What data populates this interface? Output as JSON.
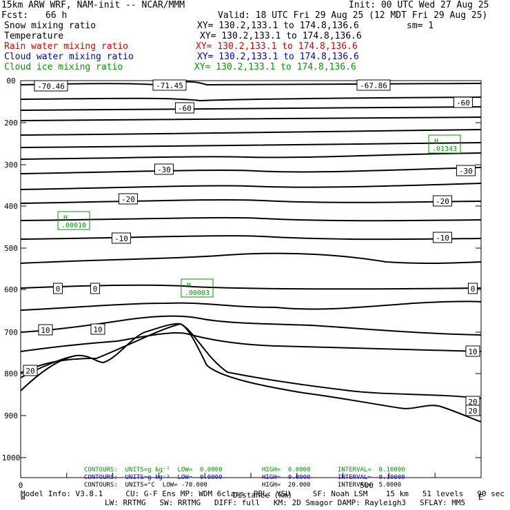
{
  "header": {
    "model": "15km ARW WRF, NAM-init -- NCAR/MMM",
    "init": "Init: 00 UTC Wed 27 Aug 25",
    "fcst_label": "Fcst:",
    "fcst_value": "66 h",
    "valid": "Valid: 18 UTC Fri 29 Aug 25 (12 MDT Fri 29 Aug 25)",
    "fields": [
      {
        "name": "Snow mixing ratio",
        "xy": "XY= 130.2,133.1 to 174.8,136.6",
        "extra": "sm= 1",
        "color": "#000000"
      },
      {
        "name": "Temperature",
        "xy": "XY= 130.2,133.1 to 174.8,136.6",
        "extra": "",
        "color": "#000000"
      },
      {
        "name": "Rain water mixing ratio",
        "xy": "XY= 130.2,133.1 to 174.8,136.6",
        "extra": "",
        "color": "#e00000"
      },
      {
        "name": "Cloud water mixing ratio",
        "xy": "XY= 130.2,133.1 to 174.8,136.6",
        "extra": "",
        "color": "#0000cc"
      },
      {
        "name": "Cloud ice mixing ratio",
        "xy": "XY= 130.2,133.1 to 174.8,136.6",
        "extra": "",
        "color": "#009900"
      }
    ]
  },
  "chart_data": {
    "type": "contour-cross-section",
    "y_ticks": [
      "00",
      "200",
      "300",
      "400",
      "500",
      "600",
      "700",
      "800",
      "900",
      "1000"
    ],
    "x_ticks": [
      "0",
      "500"
    ],
    "xlabel": "Distance (km)",
    "x_end_labels": {
      "left": "W",
      "right": "E"
    },
    "temperature_labels": [
      "-70.46",
      "-71.45",
      "-67.86",
      "-60",
      "-60",
      "-30",
      "-30",
      "-20",
      "-20",
      "-10",
      "-10",
      "0",
      "0",
      "0",
      "10",
      "10",
      "10",
      "20",
      "20",
      "20"
    ],
    "extrema": [
      {
        "symbol": "H",
        "value": ".01343",
        "color": "#009900"
      },
      {
        "symbol": "H",
        "value": ".00010",
        "color": "#009900"
      },
      {
        "symbol": "H",
        "value": ".00003",
        "color": "#009900"
      }
    ],
    "contour_info": [
      {
        "text": "CONTOURS:  UNITS=g kg⁻¹  LOW=  0.0000",
        "high": "HIGH=  0.0000",
        "interval": "INTERVAL=  0.10000",
        "color": "#009900"
      },
      {
        "text": "CONTOURS:  UNITS=g kg⁻¹  LOW=  0.0000",
        "high": "HIGH=  0.0000",
        "interval": "INTERVAL=  0.10000",
        "color": "#0000cc"
      },
      {
        "text": "CONTOURS:  UNITS=°C  LOW= -70.000",
        "high": "HIGH=  20.000",
        "interval": "INTERVAL=  5.0000",
        "color": "#000000"
      }
    ]
  },
  "footer": {
    "line1": "Model Info: V3.8.1     CU: G-F Ens MP: WDM 6class  PBL: YSU     SF: Noah LSM    15 km   51 levels   90 sec",
    "line2": "LW: RRTMG   SW: RRTMG   DIFF: full   KM: 2D Smagor DAMP: Rayleigh3   SFLAY: MM5"
  }
}
